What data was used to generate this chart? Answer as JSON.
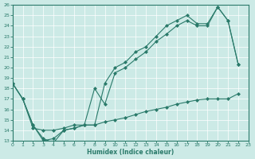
{
  "xlabel": "Humidex (Indice chaleur)",
  "bg_color": "#cceae6",
  "line_color": "#2a7a6a",
  "xlim": [
    0,
    23
  ],
  "ylim": [
    13,
    26
  ],
  "xticks": [
    0,
    1,
    2,
    3,
    4,
    5,
    6,
    7,
    8,
    9,
    10,
    11,
    12,
    13,
    14,
    15,
    16,
    17,
    18,
    19,
    20,
    21,
    22,
    23
  ],
  "yticks": [
    13,
    14,
    15,
    16,
    17,
    18,
    19,
    20,
    21,
    22,
    23,
    24,
    25,
    26
  ],
  "curve1_x": [
    0,
    1,
    2,
    3,
    4,
    5,
    6,
    7,
    8,
    9,
    10,
    11,
    12,
    13,
    14,
    15,
    16,
    17,
    18,
    19,
    20,
    21,
    22
  ],
  "curve1_y": [
    18.5,
    17.0,
    14.5,
    13.0,
    13.2,
    14.0,
    14.2,
    14.5,
    18.0,
    16.5,
    19.5,
    20.0,
    20.8,
    21.5,
    22.5,
    23.2,
    24.0,
    24.5,
    24.0,
    24.0,
    25.8,
    24.5,
    20.3
  ],
  "curve2_x": [
    0,
    1,
    2,
    3,
    4,
    5,
    6,
    7,
    8,
    9,
    10,
    11,
    12,
    13,
    14,
    15,
    16,
    17,
    18,
    19,
    20,
    21,
    22
  ],
  "curve2_y": [
    18.5,
    17.0,
    14.5,
    13.2,
    12.8,
    14.0,
    14.2,
    14.5,
    14.5,
    18.5,
    20.0,
    20.5,
    21.5,
    22.0,
    23.0,
    24.0,
    24.5,
    25.0,
    24.2,
    24.2,
    25.8,
    24.5,
    20.3
  ],
  "curve3_x": [
    0,
    1,
    2,
    3,
    4,
    5,
    6,
    7,
    8,
    9,
    10,
    11,
    12,
    13,
    14,
    15,
    16,
    17,
    18,
    19,
    20,
    21,
    22
  ],
  "curve3_y": [
    18.5,
    17.0,
    14.2,
    14.0,
    14.0,
    14.2,
    14.5,
    14.5,
    14.5,
    14.8,
    15.0,
    15.2,
    15.5,
    15.8,
    16.0,
    16.2,
    16.5,
    16.7,
    16.9,
    17.0,
    17.0,
    17.0,
    17.5
  ]
}
